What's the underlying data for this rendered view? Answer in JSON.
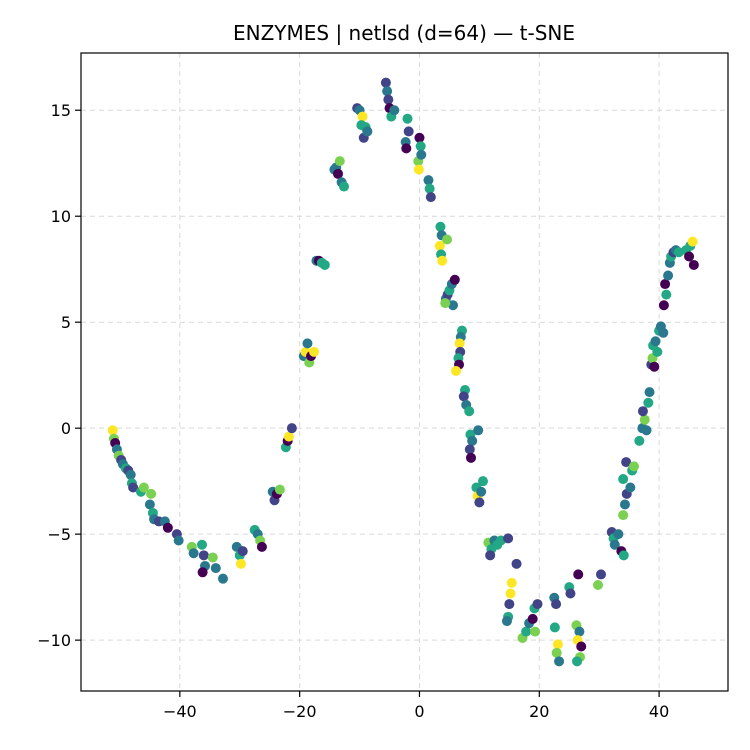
{
  "chart_data": {
    "type": "scatter",
    "title": "ENZYMES | netlsd (d=64) — t-SNE",
    "xlabel": "",
    "ylabel": "",
    "xlim": [
      -56.5,
      51.5
    ],
    "ylim": [
      -12.4,
      17.7
    ],
    "xticks": [
      -40,
      -20,
      0,
      20,
      40
    ],
    "yticks": [
      -10,
      -5,
      0,
      5,
      10,
      15
    ],
    "xtick_labels": [
      "−40",
      "−20",
      "0",
      "20",
      "40"
    ],
    "ytick_labels": [
      "−10",
      "−5",
      "0",
      "5",
      "10",
      "15"
    ],
    "grid": true,
    "legend": "none",
    "colormap": "viridis",
    "classes": 6,
    "class_colors": [
      "#440154",
      "#414487",
      "#2a788e",
      "#22a884",
      "#7ad151",
      "#fde725"
    ],
    "points": [
      {
        "x": -51.2,
        "y": -0.1,
        "c": 5
      },
      {
        "x": -51.0,
        "y": -0.5,
        "c": 4
      },
      {
        "x": -50.8,
        "y": -0.7,
        "c": 0
      },
      {
        "x": -50.5,
        "y": -1.0,
        "c": 2
      },
      {
        "x": -50.2,
        "y": -1.3,
        "c": 4
      },
      {
        "x": -49.8,
        "y": -1.5,
        "c": 1
      },
      {
        "x": -49.5,
        "y": -1.7,
        "c": 2
      },
      {
        "x": -49.0,
        "y": -1.9,
        "c": 3
      },
      {
        "x": -48.6,
        "y": -2.0,
        "c": 1
      },
      {
        "x": -48.2,
        "y": -2.2,
        "c": 2
      },
      {
        "x": -48.0,
        "y": -2.6,
        "c": 3
      },
      {
        "x": -47.8,
        "y": -2.8,
        "c": 1
      },
      {
        "x": -46.5,
        "y": -3.0,
        "c": 3
      },
      {
        "x": -46.0,
        "y": -2.8,
        "c": 4
      },
      {
        "x": -44.8,
        "y": -3.1,
        "c": 4
      },
      {
        "x": -45.0,
        "y": -3.6,
        "c": 2
      },
      {
        "x": -44.5,
        "y": -4.0,
        "c": 3
      },
      {
        "x": -44.3,
        "y": -4.3,
        "c": 2
      },
      {
        "x": -43.5,
        "y": -4.4,
        "c": 1
      },
      {
        "x": -42.5,
        "y": -4.4,
        "c": 2
      },
      {
        "x": -42.0,
        "y": -4.7,
        "c": 0
      },
      {
        "x": -40.5,
        "y": -5.0,
        "c": 1
      },
      {
        "x": -40.2,
        "y": -5.3,
        "c": 2
      },
      {
        "x": -38.0,
        "y": -5.6,
        "c": 4
      },
      {
        "x": -37.7,
        "y": -5.9,
        "c": 2
      },
      {
        "x": -36.3,
        "y": -5.5,
        "c": 3
      },
      {
        "x": -36.0,
        "y": -6.0,
        "c": 1
      },
      {
        "x": -35.8,
        "y": -6.5,
        "c": 2
      },
      {
        "x": -36.2,
        "y": -6.8,
        "c": 0
      },
      {
        "x": -34.5,
        "y": -6.1,
        "c": 4
      },
      {
        "x": -34.0,
        "y": -6.6,
        "c": 2
      },
      {
        "x": -32.8,
        "y": -7.1,
        "c": 2
      },
      {
        "x": -30.5,
        "y": -5.6,
        "c": 2
      },
      {
        "x": -30.0,
        "y": -6.0,
        "c": 3
      },
      {
        "x": -29.8,
        "y": -6.4,
        "c": 5
      },
      {
        "x": -29.5,
        "y": -5.8,
        "c": 1
      },
      {
        "x": -27.5,
        "y": -4.8,
        "c": 3
      },
      {
        "x": -27.0,
        "y": -5.0,
        "c": 2
      },
      {
        "x": -26.6,
        "y": -5.3,
        "c": 4
      },
      {
        "x": -26.3,
        "y": -5.6,
        "c": 0
      },
      {
        "x": -24.5,
        "y": -3.0,
        "c": 2
      },
      {
        "x": -24.2,
        "y": -3.4,
        "c": 1
      },
      {
        "x": -23.8,
        "y": -3.1,
        "c": 0
      },
      {
        "x": -23.3,
        "y": -2.9,
        "c": 4
      },
      {
        "x": -22.3,
        "y": -0.9,
        "c": 3
      },
      {
        "x": -22.0,
        "y": -0.6,
        "c": 0
      },
      {
        "x": -21.8,
        "y": -0.4,
        "c": 5
      },
      {
        "x": -21.3,
        "y": 0.0,
        "c": 1
      },
      {
        "x": -19.3,
        "y": 3.4,
        "c": 2
      },
      {
        "x": -19.0,
        "y": 3.6,
        "c": 5
      },
      {
        "x": -18.7,
        "y": 4.0,
        "c": 2
      },
      {
        "x": -18.4,
        "y": 3.1,
        "c": 4
      },
      {
        "x": -18.1,
        "y": 3.4,
        "c": 0
      },
      {
        "x": -17.6,
        "y": 3.6,
        "c": 5
      },
      {
        "x": -17.2,
        "y": 7.9,
        "c": 2
      },
      {
        "x": -16.8,
        "y": 7.9,
        "c": 0
      },
      {
        "x": -16.3,
        "y": 7.8,
        "c": 3
      },
      {
        "x": -15.8,
        "y": 7.7,
        "c": 3
      },
      {
        "x": -14.2,
        "y": 12.2,
        "c": 2
      },
      {
        "x": -13.9,
        "y": 12.3,
        "c": 2
      },
      {
        "x": -13.6,
        "y": 12.0,
        "c": 0
      },
      {
        "x": -13.3,
        "y": 12.6,
        "c": 4
      },
      {
        "x": -13.0,
        "y": 11.6,
        "c": 2
      },
      {
        "x": -12.6,
        "y": 11.4,
        "c": 3
      },
      {
        "x": -10.4,
        "y": 15.1,
        "c": 1
      },
      {
        "x": -10.0,
        "y": 15.0,
        "c": 2
      },
      {
        "x": -9.5,
        "y": 14.7,
        "c": 5
      },
      {
        "x": -9.7,
        "y": 14.3,
        "c": 3
      },
      {
        "x": -9.3,
        "y": 13.7,
        "c": 1
      },
      {
        "x": -9.0,
        "y": 14.2,
        "c": 3
      },
      {
        "x": -8.7,
        "y": 14.0,
        "c": 2
      },
      {
        "x": -5.6,
        "y": 16.3,
        "c": 1
      },
      {
        "x": -5.4,
        "y": 15.9,
        "c": 2
      },
      {
        "x": -5.2,
        "y": 15.5,
        "c": 1
      },
      {
        "x": -5.0,
        "y": 15.1,
        "c": 0
      },
      {
        "x": -4.7,
        "y": 14.7,
        "c": 3
      },
      {
        "x": -4.2,
        "y": 15.0,
        "c": 2
      },
      {
        "x": -2.3,
        "y": 13.5,
        "c": 2
      },
      {
        "x": -2.0,
        "y": 14.6,
        "c": 3
      },
      {
        "x": -1.8,
        "y": 14.0,
        "c": 1
      },
      {
        "x": -2.2,
        "y": 13.2,
        "c": 0
      },
      {
        "x": 0.0,
        "y": 13.7,
        "c": 0
      },
      {
        "x": 0.2,
        "y": 13.3,
        "c": 3
      },
      {
        "x": -0.2,
        "y": 12.6,
        "c": 4
      },
      {
        "x": -0.1,
        "y": 12.2,
        "c": 5
      },
      {
        "x": 0.3,
        "y": 12.9,
        "c": 2
      },
      {
        "x": 1.5,
        "y": 11.7,
        "c": 2
      },
      {
        "x": 1.7,
        "y": 11.3,
        "c": 3
      },
      {
        "x": 1.9,
        "y": 10.9,
        "c": 1
      },
      {
        "x": 3.5,
        "y": 9.5,
        "c": 3
      },
      {
        "x": 3.7,
        "y": 9.1,
        "c": 2
      },
      {
        "x": 3.4,
        "y": 8.6,
        "c": 5
      },
      {
        "x": 3.6,
        "y": 8.2,
        "c": 3
      },
      {
        "x": 3.8,
        "y": 7.9,
        "c": 5
      },
      {
        "x": 4.6,
        "y": 8.9,
        "c": 4
      },
      {
        "x": 4.4,
        "y": 6.1,
        "c": 2
      },
      {
        "x": 4.7,
        "y": 6.3,
        "c": 1
      },
      {
        "x": 5.0,
        "y": 6.5,
        "c": 3
      },
      {
        "x": 5.4,
        "y": 6.8,
        "c": 2
      },
      {
        "x": 5.6,
        "y": 5.8,
        "c": 2
      },
      {
        "x": 5.9,
        "y": 7.0,
        "c": 0
      },
      {
        "x": 4.3,
        "y": 5.9,
        "c": 4
      },
      {
        "x": 7.1,
        "y": 4.6,
        "c": 3
      },
      {
        "x": 6.9,
        "y": 4.3,
        "c": 2
      },
      {
        "x": 6.7,
        "y": 4.0,
        "c": 5
      },
      {
        "x": 6.8,
        "y": 3.6,
        "c": 1
      },
      {
        "x": 6.5,
        "y": 3.3,
        "c": 3
      },
      {
        "x": 6.6,
        "y": 3.0,
        "c": 0
      },
      {
        "x": 6.1,
        "y": 2.7,
        "c": 5
      },
      {
        "x": 7.6,
        "y": 1.8,
        "c": 3
      },
      {
        "x": 7.4,
        "y": 1.5,
        "c": 1
      },
      {
        "x": 7.8,
        "y": 1.1,
        "c": 2
      },
      {
        "x": 8.3,
        "y": 0.8,
        "c": 3
      },
      {
        "x": 8.5,
        "y": -0.3,
        "c": 3
      },
      {
        "x": 8.8,
        "y": -0.6,
        "c": 2
      },
      {
        "x": 8.4,
        "y": -1.0,
        "c": 1
      },
      {
        "x": 8.6,
        "y": -1.4,
        "c": 0
      },
      {
        "x": 9.8,
        "y": -0.1,
        "c": 2
      },
      {
        "x": 9.5,
        "y": -2.8,
        "c": 3
      },
      {
        "x": 9.7,
        "y": -3.2,
        "c": 5
      },
      {
        "x": 10.0,
        "y": -3.5,
        "c": 1
      },
      {
        "x": 10.3,
        "y": -3.0,
        "c": 2
      },
      {
        "x": 10.6,
        "y": -2.5,
        "c": 3
      },
      {
        "x": 11.5,
        "y": -5.4,
        "c": 4
      },
      {
        "x": 12.0,
        "y": -5.7,
        "c": 3
      },
      {
        "x": 11.8,
        "y": -6.0,
        "c": 1
      },
      {
        "x": 12.5,
        "y": -5.3,
        "c": 2
      },
      {
        "x": 13.0,
        "y": -5.5,
        "c": 3
      },
      {
        "x": 13.6,
        "y": -5.3,
        "c": 3
      },
      {
        "x": 14.8,
        "y": -5.2,
        "c": 1
      },
      {
        "x": 15.4,
        "y": -7.3,
        "c": 5
      },
      {
        "x": 15.2,
        "y": -7.8,
        "c": 5
      },
      {
        "x": 15.0,
        "y": -8.3,
        "c": 1
      },
      {
        "x": 14.8,
        "y": -8.9,
        "c": 3
      },
      {
        "x": 14.6,
        "y": -9.1,
        "c": 2
      },
      {
        "x": 16.2,
        "y": -6.4,
        "c": 1
      },
      {
        "x": 17.2,
        "y": -9.9,
        "c": 4
      },
      {
        "x": 17.8,
        "y": -9.6,
        "c": 3
      },
      {
        "x": 18.3,
        "y": -9.2,
        "c": 2
      },
      {
        "x": 18.9,
        "y": -9.0,
        "c": 0
      },
      {
        "x": 19.2,
        "y": -8.5,
        "c": 3
      },
      {
        "x": 19.7,
        "y": -8.3,
        "c": 1
      },
      {
        "x": 19.3,
        "y": -9.6,
        "c": 4
      },
      {
        "x": 22.5,
        "y": -8.0,
        "c": 2
      },
      {
        "x": 22.8,
        "y": -8.3,
        "c": 1
      },
      {
        "x": 22.6,
        "y": -9.4,
        "c": 3
      },
      {
        "x": 23.1,
        "y": -10.2,
        "c": 5
      },
      {
        "x": 22.9,
        "y": -10.6,
        "c": 4
      },
      {
        "x": 23.3,
        "y": -11.0,
        "c": 2
      },
      {
        "x": 25.0,
        "y": -7.5,
        "c": 3
      },
      {
        "x": 25.2,
        "y": -7.8,
        "c": 1
      },
      {
        "x": 26.5,
        "y": -6.9,
        "c": 0
      },
      {
        "x": 26.2,
        "y": -9.3,
        "c": 4
      },
      {
        "x": 26.7,
        "y": -9.6,
        "c": 2
      },
      {
        "x": 26.4,
        "y": -10.0,
        "c": 5
      },
      {
        "x": 27.0,
        "y": -10.3,
        "c": 0
      },
      {
        "x": 26.8,
        "y": -10.8,
        "c": 4
      },
      {
        "x": 26.3,
        "y": -11.0,
        "c": 3
      },
      {
        "x": 29.8,
        "y": -7.4,
        "c": 4
      },
      {
        "x": 30.3,
        "y": -6.9,
        "c": 1
      },
      {
        "x": 32.1,
        "y": -4.9,
        "c": 1
      },
      {
        "x": 32.4,
        "y": -5.2,
        "c": 3
      },
      {
        "x": 32.6,
        "y": -5.5,
        "c": 2
      },
      {
        "x": 33.2,
        "y": -5.0,
        "c": 2
      },
      {
        "x": 33.7,
        "y": -5.8,
        "c": 0
      },
      {
        "x": 34.1,
        "y": -6.0,
        "c": 3
      },
      {
        "x": 34.0,
        "y": -4.1,
        "c": 4
      },
      {
        "x": 34.3,
        "y": -3.6,
        "c": 2
      },
      {
        "x": 34.6,
        "y": -3.1,
        "c": 1
      },
      {
        "x": 34.0,
        "y": -2.4,
        "c": 3
      },
      {
        "x": 35.2,
        "y": -2.8,
        "c": 2
      },
      {
        "x": 34.5,
        "y": -1.6,
        "c": 1
      },
      {
        "x": 35.5,
        "y": -2.0,
        "c": 3
      },
      {
        "x": 35.8,
        "y": -1.8,
        "c": 4
      },
      {
        "x": 36.7,
        "y": -0.6,
        "c": 3
      },
      {
        "x": 37.2,
        "y": 0.0,
        "c": 2
      },
      {
        "x": 37.6,
        "y": 0.4,
        "c": 4
      },
      {
        "x": 37.3,
        "y": 0.8,
        "c": 1
      },
      {
        "x": 37.9,
        "y": -0.1,
        "c": 2
      },
      {
        "x": 38.2,
        "y": 1.2,
        "c": 3
      },
      {
        "x": 38.4,
        "y": 1.7,
        "c": 2
      },
      {
        "x": 38.7,
        "y": 3.0,
        "c": 1
      },
      {
        "x": 38.9,
        "y": 3.3,
        "c": 4
      },
      {
        "x": 39.2,
        "y": 2.9,
        "c": 0
      },
      {
        "x": 39.0,
        "y": 3.9,
        "c": 3
      },
      {
        "x": 39.4,
        "y": 4.1,
        "c": 2
      },
      {
        "x": 39.7,
        "y": 3.6,
        "c": 3
      },
      {
        "x": 40.0,
        "y": 4.6,
        "c": 3
      },
      {
        "x": 40.3,
        "y": 4.8,
        "c": 2
      },
      {
        "x": 40.7,
        "y": 4.5,
        "c": 2
      },
      {
        "x": 40.8,
        "y": 5.8,
        "c": 0
      },
      {
        "x": 41.2,
        "y": 6.3,
        "c": 3
      },
      {
        "x": 41.0,
        "y": 6.8,
        "c": 0
      },
      {
        "x": 41.5,
        "y": 7.2,
        "c": 2
      },
      {
        "x": 41.8,
        "y": 7.8,
        "c": 2
      },
      {
        "x": 42.0,
        "y": 8.1,
        "c": 3
      },
      {
        "x": 42.4,
        "y": 8.3,
        "c": 1
      },
      {
        "x": 42.8,
        "y": 8.4,
        "c": 2
      },
      {
        "x": 43.3,
        "y": 8.3,
        "c": 3
      },
      {
        "x": 44.5,
        "y": 8.4,
        "c": 3
      },
      {
        "x": 45.2,
        "y": 8.6,
        "c": 3
      },
      {
        "x": 45.6,
        "y": 8.8,
        "c": 5
      },
      {
        "x": 45.0,
        "y": 8.1,
        "c": 0
      },
      {
        "x": 45.8,
        "y": 7.7,
        "c": 0
      }
    ]
  }
}
